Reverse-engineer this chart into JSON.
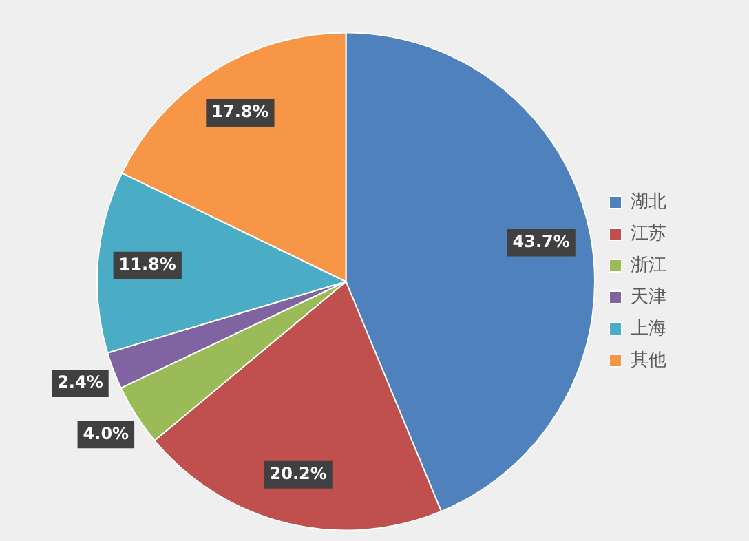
{
  "chart_data": {
    "type": "pie",
    "categories": [
      "湖北",
      "江苏",
      "浙江",
      "天津",
      "上海",
      "其他"
    ],
    "values": [
      43.7,
      20.2,
      4.0,
      2.4,
      11.8,
      17.8
    ],
    "colors": [
      "#4f81bd",
      "#c0504d",
      "#9bbb59",
      "#8064a2",
      "#4bacc6",
      "#f79646"
    ],
    "value_labels": [
      "43.7%",
      "20.2%",
      "4.0%",
      "2.4%",
      "11.8%",
      "17.8%"
    ],
    "legend": "right"
  }
}
